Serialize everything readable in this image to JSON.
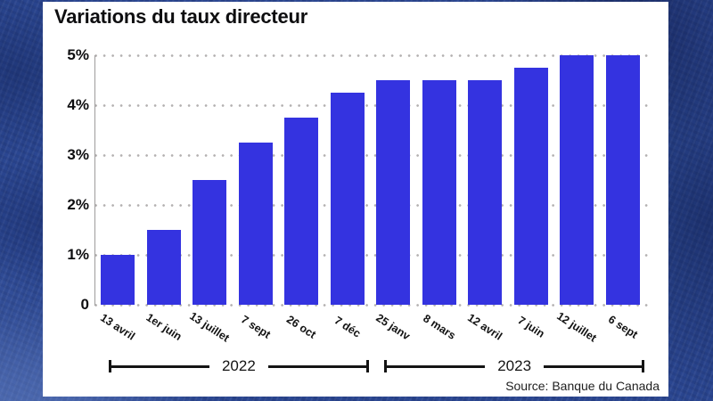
{
  "title": "Variations du taux directeur",
  "source": "Source: Banque du Canada",
  "colors": {
    "bar": "#3433e0",
    "frame_blue": "#2b4792",
    "grid_dot": "#b4b1b1",
    "axis": "#9e9c9c",
    "text": "#0e0e10"
  },
  "chart_data": {
    "type": "bar",
    "title": "Variations du taux directeur",
    "categories": [
      "13 avril",
      "1er juin",
      "13 juillet",
      "7 sept",
      "26 oct",
      "7 déc",
      "25 janv",
      "8 mars",
      "12 avril",
      "7 juin",
      "12 juillet",
      "6 sept"
    ],
    "values": [
      1.0,
      1.5,
      2.5,
      3.25,
      3.75,
      4.25,
      4.5,
      4.5,
      4.5,
      4.75,
      5.0,
      5.0
    ],
    "unit": "%",
    "ylim": [
      0,
      5
    ],
    "yticks": [
      {
        "label": "5%",
        "value": 5
      },
      {
        "label": "4%",
        "value": 4
      },
      {
        "label": "3%",
        "value": 3
      },
      {
        "label": "2%",
        "value": 2
      },
      {
        "label": "1%",
        "value": 1
      },
      {
        "label": "0",
        "value": 0
      }
    ],
    "grid": "dotted-horizontal",
    "legend": "none",
    "groups": [
      {
        "label": "2022",
        "from": 0,
        "to": 5
      },
      {
        "label": "2023",
        "from": 6,
        "to": 11
      }
    ]
  }
}
